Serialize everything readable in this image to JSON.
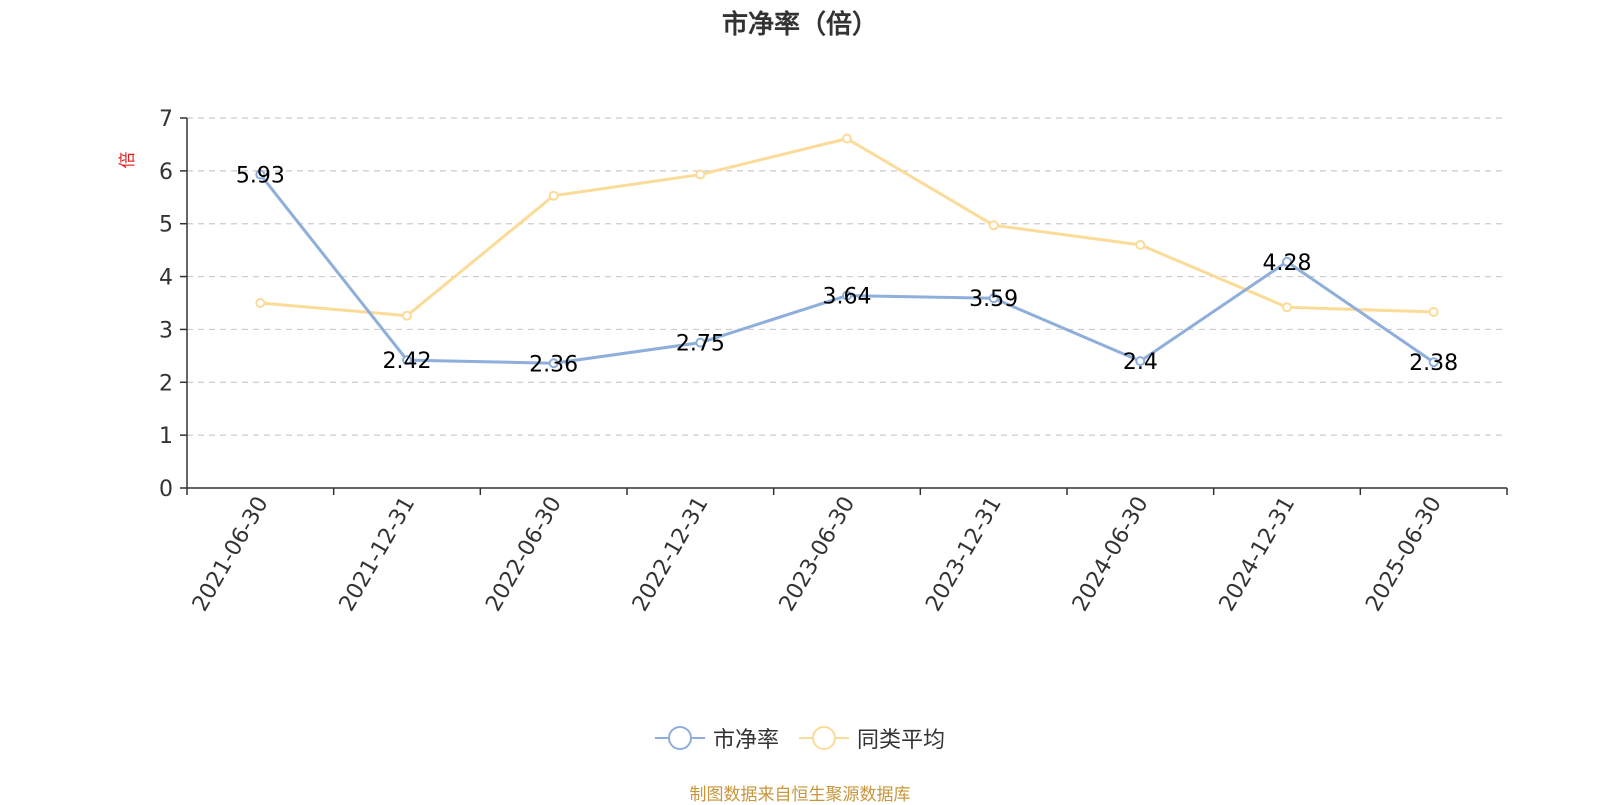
{
  "chart_data": {
    "type": "line",
    "title": "市净率（倍）",
    "ylabel": "倍",
    "ylim": [
      0,
      7
    ],
    "yticks": [
      0,
      1,
      2,
      3,
      4,
      5,
      6,
      7
    ],
    "categories": [
      "2021-06-30",
      "2021-12-31",
      "2022-06-30",
      "2022-12-31",
      "2023-06-30",
      "2023-12-31",
      "2024-06-30",
      "2024-12-31",
      "2025-06-30"
    ],
    "series": [
      {
        "name": "市净率",
        "color": "#8eaedb",
        "values": [
          5.93,
          2.42,
          2.36,
          2.75,
          3.64,
          3.59,
          2.4,
          4.28,
          2.38
        ],
        "labels": [
          "5.93",
          "2.42",
          "2.36",
          "2.75",
          "3.64",
          "3.59",
          "2.4",
          "4.28",
          "2.38"
        ]
      },
      {
        "name": "同类平均",
        "color": "#fbdb98",
        "values": [
          3.5,
          3.26,
          5.53,
          5.93,
          6.61,
          4.97,
          4.6,
          3.42,
          3.33
        ]
      }
    ],
    "grid": true,
    "legend_position": "bottom"
  },
  "ylabel_color": "#e02020",
  "source_note": "制图数据来自恒生聚源数据库"
}
